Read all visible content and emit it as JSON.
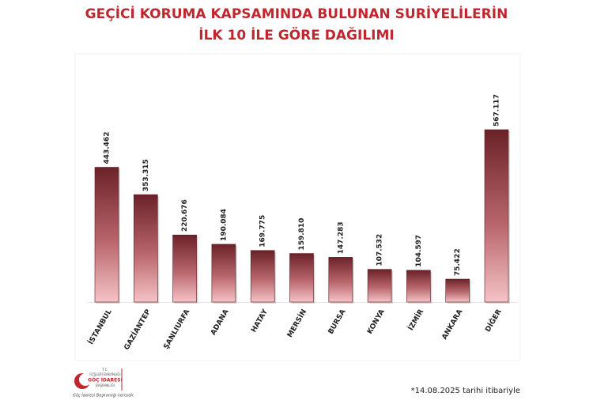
{
  "chart_data": {
    "type": "bar",
    "title": [
      "GEÇİCİ KORUMA KAPSAMINDA BULUNAN SURİYELİLERİN",
      "İLK 10 İLE GÖRE DAĞILIMI"
    ],
    "categories": [
      "İSTANBUL",
      "GAZİANTEP",
      "ŞANLIURFA",
      "ADANA",
      "HATAY",
      "MERSİN",
      "BURSA",
      "KONYA",
      "İZMİR",
      "ANKARA",
      "DİĞER"
    ],
    "values": [
      443462,
      353315,
      220676,
      190084,
      169775,
      159810,
      147283,
      107532,
      104597,
      75422,
      567117
    ],
    "value_labels": [
      "443.462",
      "353.315",
      "220.676",
      "190.084",
      "169.775",
      "159.810",
      "147.283",
      "107.532",
      "104.597",
      "75.422",
      "567.117"
    ],
    "footnote": "*14.08.2025 tarihi itibariyle"
  },
  "logo": {
    "lines": [
      "T.C.",
      "İÇİŞLERİ BAKANLIĞI",
      "GÖÇ İDARESİ",
      "BAŞKANLIĞI"
    ],
    "caption": "Göç İdaresi Başkanlığı verisidir."
  }
}
